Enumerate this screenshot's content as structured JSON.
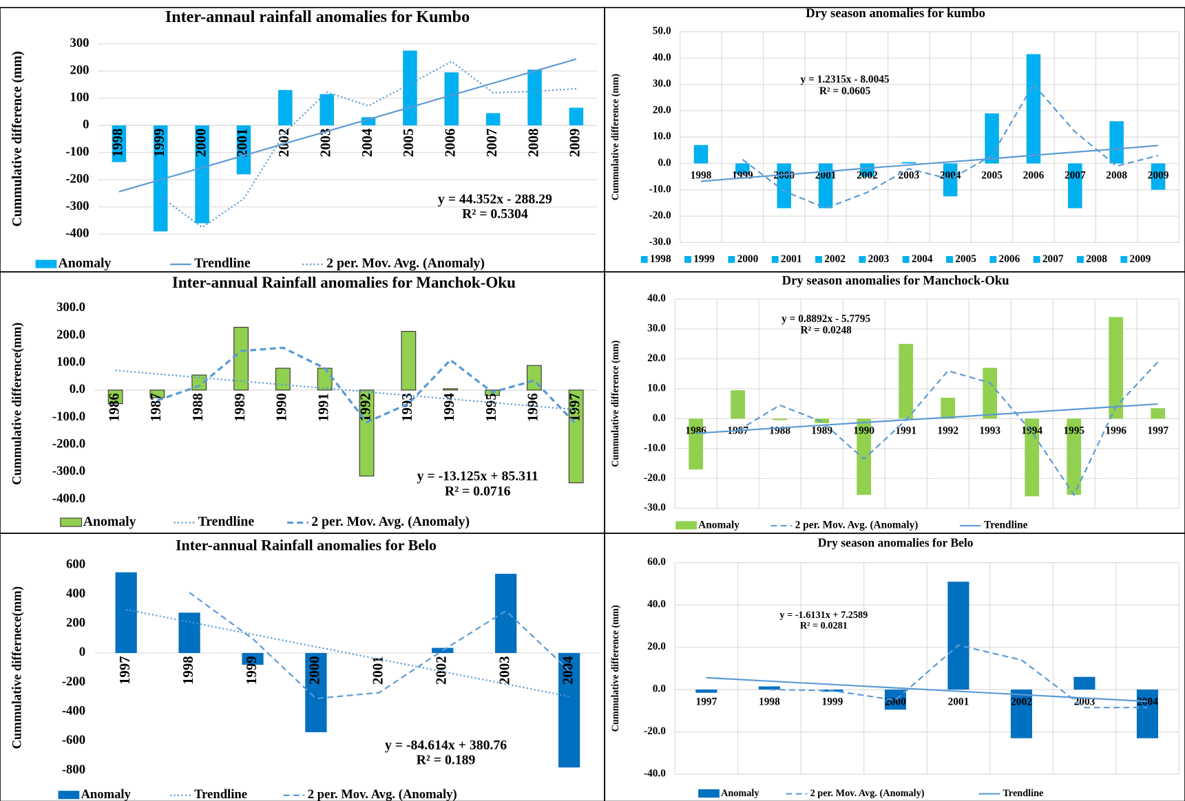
{
  "chart_data": [
    {
      "type": "bar",
      "title": "Inter-annaul rainfall anomalies for Kumbo",
      "y_label": "Cummulative difference (mm)",
      "categories": [
        "1998",
        "1999",
        "2000",
        "2001",
        "2002",
        "2003",
        "2004",
        "2005",
        "2006",
        "2007",
        "2008",
        "2009"
      ],
      "category_label_rotation": -90,
      "series": [
        {
          "name": "Anomaly",
          "type": "bar",
          "color": "#00b0f0",
          "values": [
            -135,
            -390,
            -360,
            -180,
            130,
            115,
            30,
            275,
            195,
            45,
            205,
            65
          ]
        },
        {
          "name": "Trendline",
          "type": "line",
          "dash": "solid",
          "color": "#5b9bd5",
          "values": [
            -243.9,
            -199.6,
            -155.2,
            -110.9,
            -66.5,
            -22.2,
            22.2,
            66.5,
            110.9,
            155.2,
            199.6,
            243.9
          ]
        },
        {
          "name": "2 per. Mov. Avg. (Anomaly)",
          "type": "line",
          "dash": "dotted",
          "color": "#5b9bd5",
          "values": [
            null,
            -262,
            -375,
            -270,
            -25,
            122,
            72,
            152,
            235,
            120,
            125,
            135
          ]
        }
      ],
      "ylim": [
        -400,
        300
      ],
      "yticks": [
        -400,
        -300,
        -200,
        -100,
        0,
        100,
        200,
        300
      ],
      "grid": true,
      "vertical_grid": false,
      "equation": "y = 44.352x - 288.29",
      "r_squared": "R² = 0.5304"
    },
    {
      "type": "bar",
      "title": "Dry season anomalies for kumbo",
      "y_label": "Cummulative difference (mm)",
      "categories": [
        "1998",
        "1999",
        "2000",
        "2001",
        "2002",
        "2003",
        "2004",
        "2005",
        "2006",
        "2007",
        "2008",
        "2009"
      ],
      "category_label_rotation": 0,
      "legend_from_categories": true,
      "series": [
        {
          "type": "bar",
          "color": "#00b0f0",
          "values": [
            7,
            -4,
            -17,
            -17,
            -5,
            0.5,
            -12.5,
            19,
            41.5,
            -17,
            16,
            -10
          ]
        },
        {
          "type": "line",
          "dash": "dashed",
          "color": "#5b9bd5",
          "values": [
            null,
            1.5,
            -10.5,
            -17,
            -11,
            -2,
            -6,
            3,
            30,
            12,
            -1,
            3
          ]
        },
        {
          "type": "line",
          "dash": "solid",
          "color": "#5b9bd5",
          "values": [
            -6.8,
            -5.5,
            -4.3,
            -3.1,
            -1.8,
            -0.6,
            0.6,
            1.8,
            3.1,
            4.3,
            5.5,
            6.8
          ]
        }
      ],
      "ylim": [
        -30,
        50
      ],
      "yticks": [
        {
          "value": -30,
          "label": "-30.0"
        },
        {
          "value": -20,
          "label": "-20.0"
        },
        {
          "value": -10,
          "label": "-10.0"
        },
        {
          "value": 0,
          "label": "0.0"
        },
        {
          "value": 10,
          "label": "10.0"
        },
        {
          "value": 20,
          "label": "20.0"
        },
        {
          "value": 30,
          "label": "30.0"
        },
        {
          "value": 40,
          "label": "40.0"
        },
        {
          "value": 50,
          "label": "50.0"
        }
      ],
      "grid": true,
      "vertical_grid": true,
      "equation": "y = 1.2315x - 8.0045",
      "r_squared": "R² = 0.0605"
    },
    {
      "type": "bar",
      "title": "Inter-annual Rainfall anomalies for Manchok-Oku",
      "y_label": "Cummulative difference(mm)",
      "categories": [
        "1986",
        "1987",
        "1988",
        "1989",
        "1990",
        "1991",
        "1992",
        "1993",
        "1994",
        "1995",
        "1996",
        "1997"
      ],
      "category_label_rotation": -90,
      "series": [
        {
          "name": "Anomaly",
          "type": "bar",
          "color": "#92d050",
          "outline": "#333333",
          "values": [
            -50,
            -28,
            55,
            230,
            80,
            80,
            -315,
            215,
            5,
            -20,
            90,
            -340
          ]
        },
        {
          "name": "Trendline",
          "type": "line",
          "dash": "dotted",
          "color": "#5b9bd5",
          "values": [
            72.2,
            59.1,
            45.9,
            32.8,
            19.7,
            6.6,
            -6.6,
            -19.7,
            -32.8,
            -45.9,
            -59.1,
            -72.2
          ]
        },
        {
          "name": "2 per. Mov. Avg. (Anomaly)",
          "type": "line",
          "dash": "dashed",
          "color": "#5b9bd5",
          "width": 3,
          "values": [
            null,
            -38,
            15,
            143,
            155,
            80,
            -118,
            -50,
            110,
            -8,
            35,
            -125
          ]
        }
      ],
      "ylim": [
        -400,
        300
      ],
      "yticks": [
        {
          "value": -400,
          "label": "-400.0"
        },
        {
          "value": -300,
          "label": "-300.0"
        },
        {
          "value": -200,
          "label": "-200.0"
        },
        {
          "value": -100,
          "label": "-100.0"
        },
        {
          "value": 0,
          "label": "0.0"
        },
        {
          "value": 100,
          "label": "100.0"
        },
        {
          "value": 200,
          "label": "200.0"
        },
        {
          "value": 300,
          "label": "300.0"
        }
      ],
      "grid": false,
      "vertical_grid": false,
      "equation": "y = -13.125x + 85.311",
      "r_squared": "R² = 0.0716"
    },
    {
      "type": "bar",
      "title": "Dry season anomalies for Manchock-Oku",
      "y_label": "Cummulative difference (mm)",
      "categories": [
        "1986",
        "1987",
        "1988",
        "1989",
        "1990",
        "1991",
        "1992",
        "1993",
        "1994",
        "1995",
        "1996",
        "1997"
      ],
      "category_label_rotation": 0,
      "series": [
        {
          "name": "Anomaly",
          "type": "bar",
          "color": "#92d050",
          "values": [
            -17,
            9.5,
            -0.5,
            -1.5,
            -25.5,
            25,
            7,
            17,
            -26,
            -25.5,
            34,
            3.5
          ]
        },
        {
          "name": "2 per. Mov. Avg. (Anomaly)",
          "type": "line",
          "dash": "dashed",
          "color": "#5b9bd5",
          "values": [
            null,
            -4,
            4.5,
            -1,
            -13.5,
            -0.5,
            16,
            12,
            -4.5,
            -25.5,
            4,
            19
          ]
        },
        {
          "name": "Trendline",
          "type": "line",
          "dash": "solid",
          "color": "#5b9bd5",
          "values": [
            -4.9,
            -4.0,
            -3.1,
            -2.2,
            -1.3,
            -0.4,
            0.4,
            1.3,
            2.2,
            3.1,
            4.0,
            4.9
          ]
        }
      ],
      "ylim": [
        -30,
        40
      ],
      "yticks": [
        {
          "value": -30,
          "label": "-30.0"
        },
        {
          "value": -20,
          "label": "-20.0"
        },
        {
          "value": -10,
          "label": "-10.0"
        },
        {
          "value": 0,
          "label": "0.0"
        },
        {
          "value": 10,
          "label": "10.0"
        },
        {
          "value": 20,
          "label": "20.0"
        },
        {
          "value": 30,
          "label": "30.0"
        },
        {
          "value": 40,
          "label": "40.0"
        }
      ],
      "grid": true,
      "vertical_grid": true,
      "equation": "y = 0.8892x - 5.7795",
      "r_squared": "R² = 0.0248"
    },
    {
      "type": "bar",
      "title": "Inter-annual Rainfall anomalies for Belo",
      "y_label": "Cummulative differnece(mm)",
      "categories": [
        "1997",
        "1998",
        "1999",
        "2000",
        "2001",
        "2002",
        "2003",
        "2004"
      ],
      "category_label_rotation": -90,
      "series": [
        {
          "name": "Anomaly",
          "type": "bar",
          "color": "#0070c0",
          "values": [
            550,
            275,
            -80,
            -540,
            0,
            35,
            540,
            -780
          ]
        },
        {
          "name": "Trendline",
          "type": "line",
          "dash": "dotted",
          "color": "#5b9bd5",
          "values": [
            296.1,
            211.5,
            126.9,
            42.3,
            -42.3,
            -126.9,
            -211.5,
            -296.1
          ]
        },
        {
          "name": "2 per. Mov. Avg. (Anomaly)",
          "type": "line",
          "dash": "dashed",
          "color": "#5b9bd5",
          "values": [
            null,
            412,
            97,
            -310,
            -270,
            17,
            287,
            -120
          ]
        }
      ],
      "ylim": [
        -800,
        600
      ],
      "yticks": [
        -800,
        -600,
        -400,
        -200,
        0,
        200,
        400,
        600
      ],
      "grid": false,
      "vertical_grid": false,
      "equation": "y = -84.614x + 380.76",
      "r_squared": "R² = 0.189"
    },
    {
      "type": "bar",
      "title": "Dry season anomalies for Belo",
      "y_label": "Cummulative difference (mm)",
      "categories": [
        "1997",
        "1998",
        "1999",
        "2000",
        "2001",
        "2002",
        "2003",
        "2004"
      ],
      "category_label_rotation": 0,
      "series": [
        {
          "name": "Anomaly",
          "type": "bar",
          "color": "#0070c0",
          "values": [
            -1.5,
            1.5,
            -1,
            -9.5,
            51,
            -23,
            6,
            -23
          ]
        },
        {
          "name": "2 per. Mov. Avg. (Anomaly)",
          "type": "line",
          "dash": "dashed",
          "color": "#5b9bd5",
          "values": [
            null,
            0,
            -0.5,
            -5,
            21,
            14,
            -8.5,
            -8.5
          ]
        },
        {
          "name": "Trendline",
          "type": "line",
          "dash": "solid",
          "color": "#5b9bd5",
          "values": [
            5.6,
            4.0,
            2.4,
            0.8,
            -0.8,
            -2.4,
            -4.0,
            -5.6
          ]
        }
      ],
      "ylim": [
        -40,
        60
      ],
      "yticks": [
        {
          "value": -40,
          "label": "-40.0"
        },
        {
          "value": -20,
          "label": "-20.0"
        },
        {
          "value": 0,
          "label": "0.0"
        },
        {
          "value": 20,
          "label": "20.0"
        },
        {
          "value": 40,
          "label": "40.0"
        },
        {
          "value": 60,
          "label": "60.0"
        }
      ],
      "grid": true,
      "vertical_grid": true,
      "equation": "y = -1.6131x + 7.2589",
      "r_squared": "R² = 0.0281"
    }
  ]
}
